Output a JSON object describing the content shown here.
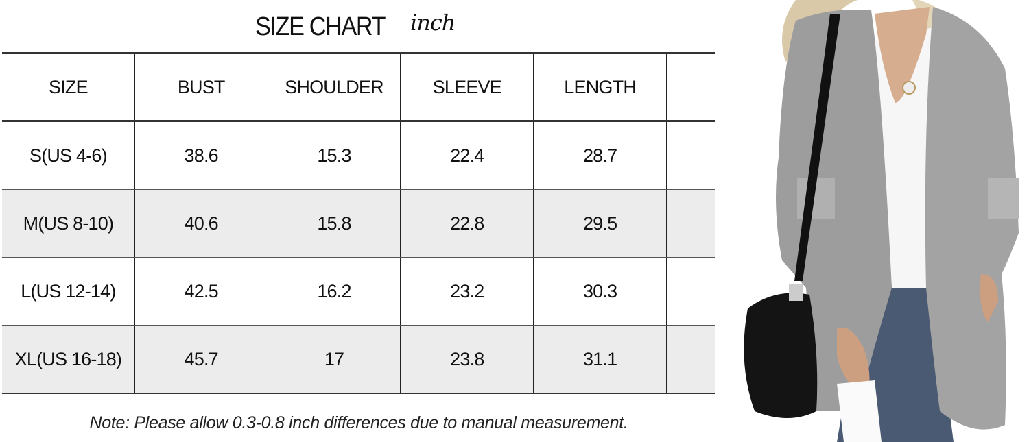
{
  "title": "SIZE CHART",
  "unit": "inch",
  "table": {
    "headers": [
      "SIZE",
      "BUST",
      "SHOULDER",
      "SLEEVE",
      "LENGTH"
    ],
    "rows": [
      [
        "S(US 4-6)",
        "38.6",
        "15.3",
        "22.4",
        "28.7"
      ],
      [
        "M(US 8-10)",
        "40.6",
        "15.8",
        "22.8",
        "29.5"
      ],
      [
        "L(US 12-14)",
        "42.5",
        "16.2",
        "23.2",
        "30.3"
      ],
      [
        "XL(US 16-18)",
        "45.7",
        "17",
        "23.8",
        "31.1"
      ]
    ],
    "shaded_row_color": "#ececec"
  },
  "note": "Note: Please allow 0.3-0.8 inch differences due to manual measurement.",
  "photo": {
    "subject": "model-wearing-grey-open-cardigan",
    "cardigan_color": "#9a9a9a"
  }
}
